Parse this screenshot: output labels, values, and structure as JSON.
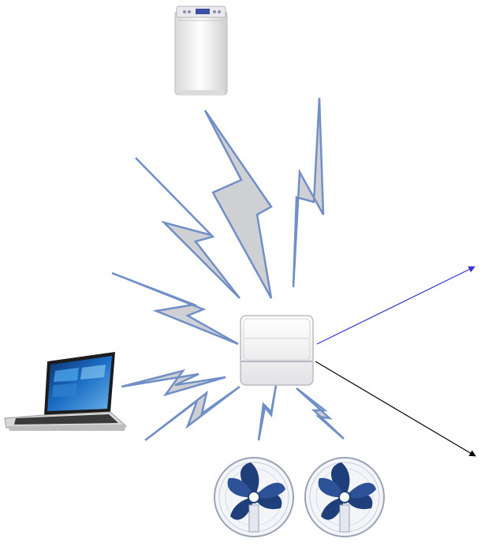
{
  "diagram": {
    "nodes": [
      {
        "id": "washing-machine",
        "icon": "washing-machine-icon"
      },
      {
        "id": "hub",
        "icon": "wireless-hub-icon"
      },
      {
        "id": "laptop",
        "icon": "laptop-icon"
      },
      {
        "id": "fan-left",
        "icon": "fan-icon"
      },
      {
        "id": "fan-right",
        "icon": "fan-icon"
      }
    ],
    "wireless_links": [
      {
        "from": "hub",
        "to": "washing-machine"
      },
      {
        "from": "hub",
        "to": "upper-right"
      },
      {
        "from": "hub",
        "to": "left"
      },
      {
        "from": "hub",
        "to": "laptop"
      },
      {
        "from": "hub",
        "to": "fan-left"
      },
      {
        "from": "hub",
        "to": "fan-right"
      }
    ],
    "arrows": [
      {
        "from": "hub",
        "direction": "up-right",
        "color": "#3333cc"
      },
      {
        "from": "hub",
        "direction": "down-right",
        "color": "#000000"
      }
    ],
    "colors": {
      "bolt_fill": "#cfd0d4",
      "bolt_stroke": "#6f8fc6",
      "appliance_body": "#f2f2f2",
      "fan_blade": "#1f3f7a",
      "screen_blue": "#1c6fc6"
    }
  }
}
